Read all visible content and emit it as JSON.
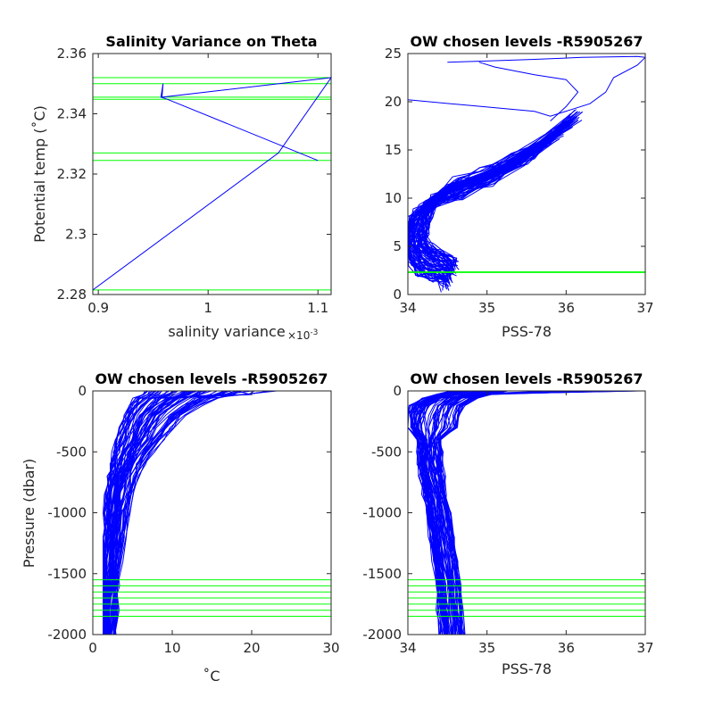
{
  "figure": {
    "colors": {
      "profile": "#0000ff",
      "level": "#00ff00",
      "axis": "#262626",
      "background": "#ffffff"
    }
  },
  "chart_data": [
    {
      "type": "line",
      "title": "Salinity Variance on Theta",
      "xlabel": "salinity variance",
      "x_multiplier_label": "×10",
      "x_multiplier_exp": "-3",
      "ylabel": "Potential temp (˚C)",
      "xlim": [
        0.000895,
        0.001112
      ],
      "ylim": [
        2.28,
        2.36
      ],
      "xticks": [
        0.0009,
        0.001,
        0.0011
      ],
      "xticklabels": [
        "0.9",
        "1",
        "1.1"
      ],
      "yticks": [
        2.28,
        2.3,
        2.32,
        2.34,
        2.36
      ],
      "yticklabels": [
        "2.28",
        "2.3",
        "2.32",
        "2.34",
        "2.36"
      ],
      "series": [
        {
          "x": [
            0.000895,
            0.001064,
            0.001112,
            0.000958,
            0.000959,
            0.000957,
            0.000963,
            0.0011
          ],
          "y": [
            2.2815,
            2.327,
            2.352,
            2.3455,
            2.35,
            2.3455,
            2.3448,
            2.3245
          ]
        }
      ],
      "chosen_levels": [
        2.2815,
        2.3245,
        2.327,
        2.3448,
        2.3455,
        2.35,
        2.352
      ],
      "grid": false
    },
    {
      "type": "line",
      "title": "OW chosen levels -R5905267",
      "xlabel": "PSS-78",
      "ylabel": "",
      "xlim": [
        34,
        37
      ],
      "ylim": [
        0,
        25
      ],
      "xticks": [
        34,
        35,
        36,
        37
      ],
      "xticklabels": [
        "34",
        "35",
        "36",
        "37"
      ],
      "yticks": [
        0,
        5,
        10,
        15,
        20,
        25
      ],
      "yticklabels": [
        "0",
        "5",
        "10",
        "15",
        "20",
        "25"
      ],
      "profiles": {
        "count": 70,
        "salinity_seed": [
          34.55,
          34.5,
          34.35,
          34.2,
          34.12,
          34.08,
          34.1,
          34.2,
          34.45,
          34.8,
          35.2,
          35.6,
          36.0
        ],
        "theta_seed": [
          2.0,
          2.5,
          3.0,
          3.6,
          4.5,
          5.5,
          7.0,
          9.0,
          10.5,
          11.5,
          13.0,
          15.0,
          17.5
        ]
      },
      "surface_lines": [
        {
          "x": [
            34.5,
            34.9,
            35.6,
            36.2,
            36.9,
            37.0
          ],
          "y": [
            24.1,
            24.2,
            24.4,
            24.6,
            24.7,
            24.6
          ]
        },
        {
          "x": [
            34.0,
            34.8,
            35.6,
            35.8,
            36.3,
            36.5,
            36.6,
            36.9,
            37.0
          ],
          "y": [
            20.2,
            19.6,
            19.0,
            18.5,
            19.8,
            21.0,
            22.5,
            23.8,
            24.6
          ]
        },
        {
          "x": [
            35.8,
            36.0,
            36.15,
            36.0,
            35.6,
            35.1,
            34.9
          ],
          "y": [
            18.0,
            19.5,
            21.0,
            22.3,
            22.8,
            23.6,
            24.1
          ]
        }
      ],
      "chosen_levels": [
        2.28,
        2.32,
        2.35
      ],
      "grid": false
    },
    {
      "type": "line",
      "title": "OW chosen levels -R5905267",
      "xlabel": "˚C",
      "ylabel": "Pressure (dbar)",
      "xlim": [
        0,
        30
      ],
      "ylim": [
        -2000,
        0
      ],
      "xticks": [
        0,
        10,
        20,
        30
      ],
      "xticklabels": [
        "0",
        "10",
        "20",
        "30"
      ],
      "yticks": [
        -2000,
        -1500,
        -1000,
        -500,
        0
      ],
      "yticklabels": [
        "-2000",
        "-1500",
        "-1000",
        "-500",
        "0"
      ],
      "profiles": {
        "count": 70,
        "pressure": [
          0,
          -30,
          -60,
          -120,
          -200,
          -300,
          -400,
          -500,
          -600,
          -700,
          -850,
          -1000,
          -1200,
          -1400,
          -1600,
          -1800,
          -2000
        ],
        "temp_seed": [
          14.0,
          13.0,
          11.5,
          10.0,
          8.5,
          7.5,
          6.5,
          5.5,
          4.8,
          4.2,
          3.7,
          3.3,
          2.9,
          2.6,
          2.4,
          2.2,
          2.1
        ],
        "warm_surface_max": 24.5
      },
      "chosen_levels": [
        -1550,
        -1600,
        -1650,
        -1700,
        -1750,
        -1800,
        -1850
      ],
      "grid": false
    },
    {
      "type": "line",
      "title": "OW chosen levels -R5905267",
      "xlabel": "PSS-78",
      "ylabel": "",
      "xlim": [
        34,
        37
      ],
      "ylim": [
        -2000,
        0
      ],
      "xticks": [
        34,
        35,
        36,
        37
      ],
      "xticklabels": [
        "34",
        "35",
        "36",
        "37"
      ],
      "yticks": [
        -2000,
        -1500,
        -1000,
        -500,
        0
      ],
      "yticklabels": [
        "-2000",
        "-1500",
        "-1000",
        "-500",
        "0"
      ],
      "profiles": {
        "count": 70,
        "pressure": [
          0,
          -30,
          -60,
          -120,
          -200,
          -300,
          -400,
          -500,
          -600,
          -700,
          -850,
          -1000,
          -1200,
          -1400,
          -1600,
          -1800,
          -2000
        ],
        "sal_seed": [
          34.9,
          34.7,
          34.5,
          34.35,
          34.3,
          34.28,
          34.27,
          34.27,
          34.28,
          34.3,
          34.34,
          34.38,
          34.42,
          34.46,
          34.5,
          34.53,
          34.56
        ],
        "salty_surface_max": 37.0
      },
      "chosen_levels": [
        -1550,
        -1600,
        -1650,
        -1700,
        -1750,
        -1800,
        -1850
      ],
      "grid": false
    }
  ]
}
